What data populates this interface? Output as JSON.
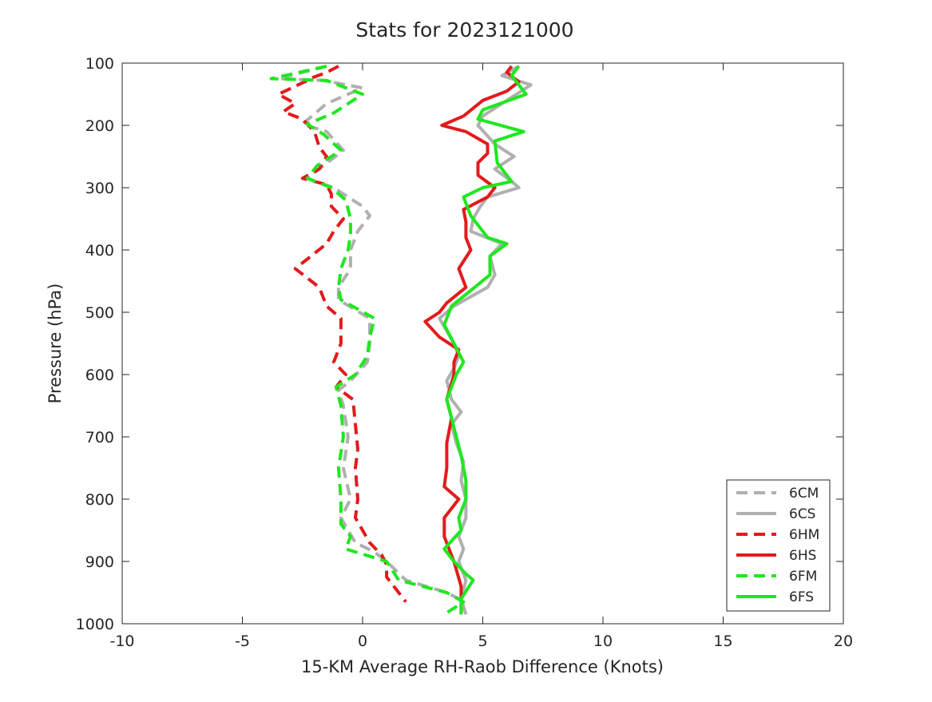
{
  "chart_data": {
    "type": "line",
    "title": "Stats for 2023121000",
    "xlabel": "15-KM Average RH-Raob Difference (Knots)",
    "ylabel": "Pressure (hPa)",
    "xlim": [
      -10,
      20
    ],
    "ylim": [
      100,
      1000
    ],
    "y_reversed": true,
    "xticks": [
      -10,
      -5,
      0,
      5,
      10,
      15,
      20
    ],
    "yticks": [
      100,
      200,
      300,
      400,
      500,
      600,
      700,
      800,
      900,
      1000
    ],
    "grid": false,
    "legend_position": "bottom-right",
    "series": [
      {
        "name": "6CM",
        "color": "#b0b0b0",
        "dash": "dashed",
        "points": [
          [
            -1.5,
            105
          ],
          [
            -3.5,
            125
          ],
          [
            -1.6,
            128
          ],
          [
            0,
            140
          ],
          [
            -1.5,
            165
          ],
          [
            -2.5,
            198
          ],
          [
            -1.5,
            210
          ],
          [
            -0.8,
            240
          ],
          [
            -1.8,
            270
          ],
          [
            -2.3,
            285
          ],
          [
            -1.2,
            300
          ],
          [
            -0.8,
            310
          ],
          [
            0,
            330
          ],
          [
            0.3,
            345
          ],
          [
            -0.2,
            370
          ],
          [
            -0.5,
            400
          ],
          [
            -0.5,
            430
          ],
          [
            -1,
            460
          ],
          [
            -1,
            480
          ],
          [
            0.3,
            510
          ],
          [
            0.3,
            550
          ],
          [
            0.2,
            580
          ],
          [
            -0.5,
            610
          ],
          [
            -1,
            625
          ],
          [
            -0.8,
            650
          ],
          [
            -0.6,
            700
          ],
          [
            -0.8,
            750
          ],
          [
            -0.5,
            800
          ],
          [
            -0.9,
            830
          ],
          [
            -0.6,
            850
          ],
          [
            -0.3,
            870
          ],
          [
            0.5,
            885
          ],
          [
            1,
            900
          ],
          [
            1.8,
            930
          ],
          [
            3.5,
            950
          ],
          [
            4,
            960
          ]
        ]
      },
      {
        "name": "6CS",
        "color": "#b0b0b0",
        "dash": "solid",
        "points": [
          [
            6.5,
            105
          ],
          [
            5.8,
            120
          ],
          [
            7,
            135
          ],
          [
            6,
            160
          ],
          [
            5,
            185
          ],
          [
            4.8,
            200
          ],
          [
            5.5,
            230
          ],
          [
            6.3,
            250
          ],
          [
            5.5,
            270
          ],
          [
            6.2,
            290
          ],
          [
            6.5,
            300
          ],
          [
            5.2,
            315
          ],
          [
            4.9,
            330
          ],
          [
            4.6,
            350
          ],
          [
            4.5,
            370
          ],
          [
            5.8,
            390
          ],
          [
            5.3,
            410
          ],
          [
            5.5,
            440
          ],
          [
            5.2,
            460
          ],
          [
            4.5,
            475
          ],
          [
            3.8,
            490
          ],
          [
            3.2,
            510
          ],
          [
            3.5,
            530
          ],
          [
            3.8,
            550
          ],
          [
            4,
            570
          ],
          [
            3.8,
            590
          ],
          [
            3.5,
            610
          ],
          [
            3.7,
            640
          ],
          [
            4.1,
            660
          ],
          [
            3.7,
            680
          ],
          [
            3.9,
            710
          ],
          [
            4.2,
            740
          ],
          [
            4.1,
            770
          ],
          [
            4.3,
            800
          ],
          [
            4.3,
            830
          ],
          [
            4,
            860
          ],
          [
            4.2,
            880
          ],
          [
            4,
            900
          ],
          [
            4.3,
            930
          ],
          [
            4.1,
            960
          ],
          [
            4.3,
            985
          ]
        ]
      },
      {
        "name": "6HM",
        "color": "#e31a1c",
        "dash": "dashed",
        "points": [
          [
            -1,
            105
          ],
          [
            -1.5,
            115
          ],
          [
            -2,
            122
          ],
          [
            -2.3,
            128
          ],
          [
            -3.5,
            150
          ],
          [
            -2.8,
            165
          ],
          [
            -3.3,
            178
          ],
          [
            -2.5,
            190
          ],
          [
            -2,
            210
          ],
          [
            -1.8,
            235
          ],
          [
            -1.5,
            250
          ],
          [
            -1.8,
            270
          ],
          [
            -2.5,
            285
          ],
          [
            -1.5,
            295
          ],
          [
            -1.3,
            310
          ],
          [
            -1.3,
            330
          ],
          [
            -0.8,
            350
          ],
          [
            -1.2,
            370
          ],
          [
            -1.5,
            390
          ],
          [
            -2.8,
            430
          ],
          [
            -1.8,
            460
          ],
          [
            -1.5,
            490
          ],
          [
            -0.9,
            510
          ],
          [
            -0.9,
            550
          ],
          [
            -1.2,
            580
          ],
          [
            -0.7,
            600
          ],
          [
            -1.1,
            620
          ],
          [
            -0.4,
            640
          ],
          [
            -0.3,
            680
          ],
          [
            -0.2,
            720
          ],
          [
            -0.3,
            750
          ],
          [
            -0.2,
            800
          ],
          [
            -0.3,
            830
          ],
          [
            0,
            850
          ],
          [
            0.3,
            870
          ],
          [
            0.8,
            890
          ],
          [
            1,
            905
          ],
          [
            1,
            925
          ],
          [
            1.5,
            950
          ],
          [
            1.8,
            965
          ]
        ]
      },
      {
        "name": "6HS",
        "color": "#e31a1c",
        "dash": "solid",
        "points": [
          [
            6.2,
            105
          ],
          [
            6,
            115
          ],
          [
            6.5,
            130
          ],
          [
            6,
            145
          ],
          [
            5,
            160
          ],
          [
            4.2,
            185
          ],
          [
            3.3,
            200
          ],
          [
            4.3,
            210
          ],
          [
            5.2,
            230
          ],
          [
            5.2,
            245
          ],
          [
            4.8,
            260
          ],
          [
            4.8,
            280
          ],
          [
            5.5,
            300
          ],
          [
            5.2,
            315
          ],
          [
            4.2,
            335
          ],
          [
            4.3,
            355
          ],
          [
            4.3,
            380
          ],
          [
            4.5,
            400
          ],
          [
            4,
            430
          ],
          [
            4.3,
            460
          ],
          [
            3.5,
            485
          ],
          [
            3.2,
            500
          ],
          [
            2.6,
            515
          ],
          [
            3.2,
            540
          ],
          [
            4,
            560
          ],
          [
            3.8,
            580
          ],
          [
            3.8,
            600
          ],
          [
            3.5,
            640
          ],
          [
            3.7,
            670
          ],
          [
            3.5,
            710
          ],
          [
            3.5,
            750
          ],
          [
            3.4,
            780
          ],
          [
            4,
            800
          ],
          [
            3.4,
            830
          ],
          [
            3.4,
            860
          ],
          [
            3.8,
            900
          ],
          [
            4.1,
            940
          ],
          [
            4.1,
            985
          ]
        ]
      },
      {
        "name": "6FM",
        "color": "#1ee81e",
        "dash": "dashed",
        "points": [
          [
            -1.5,
            105
          ],
          [
            -3.8,
            125
          ],
          [
            -1.5,
            128
          ],
          [
            0,
            150
          ],
          [
            -1.2,
            180
          ],
          [
            -2.3,
            198
          ],
          [
            -1.6,
            215
          ],
          [
            -0.9,
            240
          ],
          [
            -1.9,
            265
          ],
          [
            -2.3,
            285
          ],
          [
            -1.3,
            300
          ],
          [
            -0.7,
            320
          ],
          [
            -0.5,
            350
          ],
          [
            -0.5,
            375
          ],
          [
            -0.6,
            400
          ],
          [
            -0.9,
            430
          ],
          [
            -1,
            460
          ],
          [
            -0.9,
            480
          ],
          [
            0.5,
            510
          ],
          [
            0.3,
            540
          ],
          [
            0.2,
            570
          ],
          [
            -0.3,
            600
          ],
          [
            -1.1,
            620
          ],
          [
            -0.9,
            650
          ],
          [
            -0.8,
            700
          ],
          [
            -1,
            750
          ],
          [
            -0.9,
            800
          ],
          [
            -0.9,
            840
          ],
          [
            -0.5,
            860
          ],
          [
            -0.7,
            880
          ],
          [
            1,
            900
          ],
          [
            1.5,
            930
          ],
          [
            3.5,
            950
          ],
          [
            4.2,
            965
          ],
          [
            3.4,
            985
          ]
        ]
      },
      {
        "name": "6FS",
        "color": "#1ee81e",
        "dash": "solid",
        "points": [
          [
            6.5,
            105
          ],
          [
            6.2,
            120
          ],
          [
            6.8,
            150
          ],
          [
            5,
            175
          ],
          [
            4.8,
            190
          ],
          [
            6.7,
            210
          ],
          [
            5.5,
            225
          ],
          [
            5.6,
            260
          ],
          [
            6.2,
            290
          ],
          [
            5,
            300
          ],
          [
            4.2,
            315
          ],
          [
            4.5,
            345
          ],
          [
            5.2,
            380
          ],
          [
            6,
            390
          ],
          [
            5.3,
            410
          ],
          [
            5.3,
            440
          ],
          [
            4.5,
            465
          ],
          [
            3.7,
            490
          ],
          [
            3.4,
            520
          ],
          [
            3.8,
            550
          ],
          [
            4.2,
            580
          ],
          [
            3.9,
            600
          ],
          [
            3.5,
            640
          ],
          [
            3.7,
            670
          ],
          [
            3.9,
            700
          ],
          [
            4.1,
            730
          ],
          [
            4.3,
            770
          ],
          [
            4.3,
            800
          ],
          [
            4,
            830
          ],
          [
            4.1,
            850
          ],
          [
            3.4,
            880
          ],
          [
            3.8,
            900
          ],
          [
            4.3,
            920
          ],
          [
            4.6,
            930
          ],
          [
            4.1,
            960
          ],
          [
            4.1,
            985
          ]
        ]
      }
    ]
  }
}
